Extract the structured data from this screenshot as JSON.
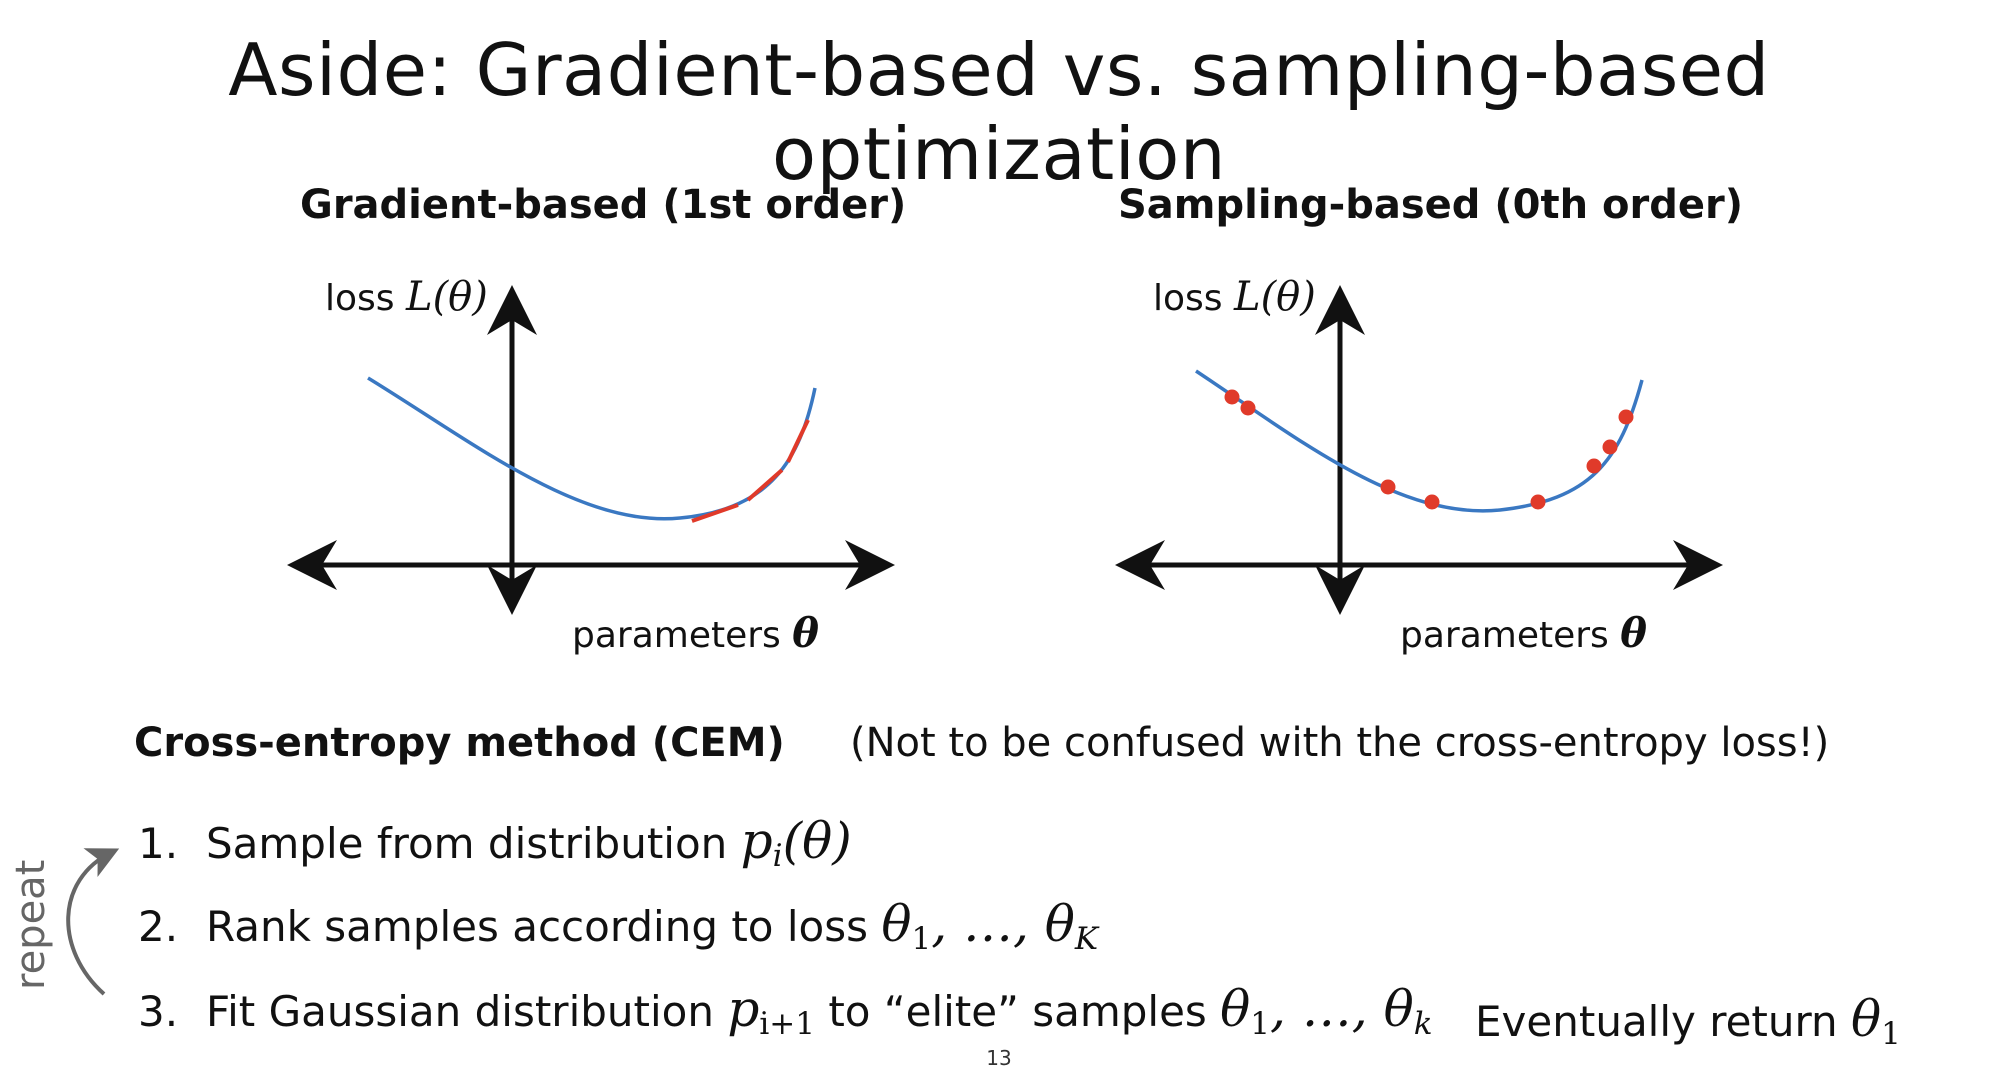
{
  "slide": {
    "title": "Aside: Gradient-based vs. sampling-based optimization",
    "page_number": "13"
  },
  "panels": [
    {
      "title": "Gradient-based (1st order)",
      "y_label_text": "loss",
      "y_label_math": "L(θ)",
      "x_label_text": "parameters",
      "x_label_math": "θ"
    },
    {
      "title": "Sampling-based (0th order)",
      "y_label_text": "loss",
      "y_label_math": "L(θ)",
      "x_label_text": "parameters",
      "x_label_math": "θ"
    }
  ],
  "cem": {
    "title": "Cross-entropy method (CEM)",
    "note": "(Not to be confused with the cross-entropy loss!)",
    "steps": [
      {
        "num": "1.",
        "text": "Sample from distribution",
        "math": "p",
        "sub": "i",
        "tail": "(θ)"
      },
      {
        "num": "2.",
        "text": "Rank samples according to loss",
        "math": "θ",
        "sub1": "1",
        "mid": ", …, θ",
        "sub2": "K"
      },
      {
        "num": "3.",
        "text": "Fit Gaussian distribution",
        "math": "p",
        "sub": "i+1",
        "after": "to “elite” samples",
        "math2": "θ",
        "sub1": "1",
        "mid": ", …, θ",
        "sub2": "k"
      }
    ],
    "eventually": {
      "text": "Eventually return",
      "math": "θ",
      "sub": "1"
    },
    "repeat_label": "repeat"
  },
  "colors": {
    "curve": "#3a78c2",
    "highlight": "#e03a2a",
    "axis": "#111111",
    "repeat_arrow": "#666666"
  }
}
